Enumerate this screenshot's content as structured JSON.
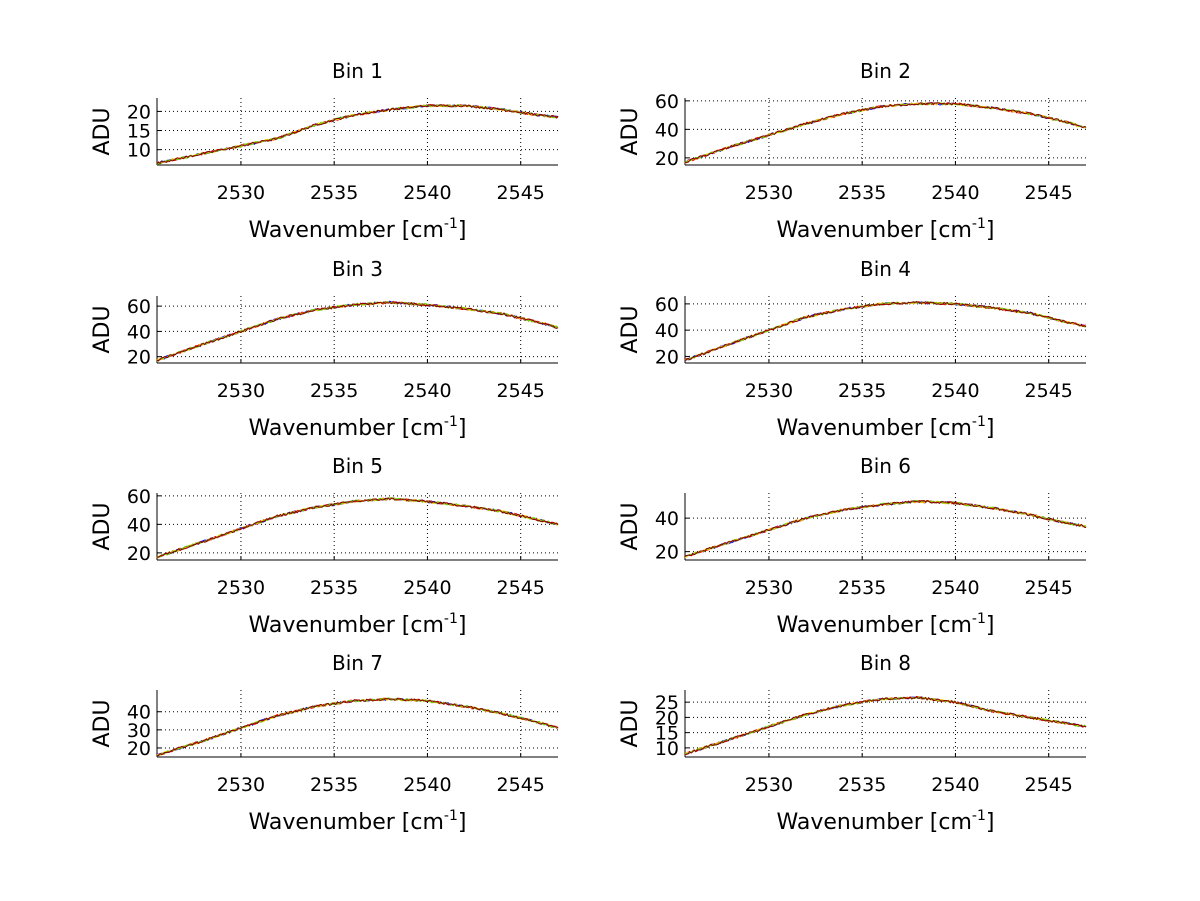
{
  "figure": {
    "background": "#ffffff",
    "series_colors": [
      "#0000ff",
      "#ff0000",
      "#ffcc00",
      "#66cc00",
      "#880000"
    ]
  },
  "chart_data": [
    {
      "type": "line",
      "title": "Bin 1",
      "xlabel": "Wavenumber [cm",
      "xlabel_sup": "-1",
      "xlabel_end": "]",
      "ylabel": "ADU",
      "xlim": [
        2525.5,
        2547
      ],
      "ylim": [
        6,
        23.5
      ],
      "xticks": [
        "2530",
        "2535",
        "2540",
        "2545"
      ],
      "yticks": [
        "10",
        "15",
        "20"
      ],
      "grid": true,
      "x": [
        2525.5,
        2528,
        2530,
        2532,
        2534,
        2536,
        2538,
        2540,
        2542,
        2544,
        2546,
        2547
      ],
      "y": [
        6.5,
        9,
        11,
        13,
        16.5,
        19,
        20.5,
        21.5,
        21.5,
        20.5,
        19,
        18.5
      ]
    },
    {
      "type": "line",
      "title": "Bin 2",
      "xlabel": "Wavenumber [cm",
      "xlabel_sup": "-1",
      "xlabel_end": "]",
      "ylabel": "ADU",
      "xlim": [
        2525.5,
        2547
      ],
      "ylim": [
        15,
        62
      ],
      "xticks": [
        "2530",
        "2535",
        "2540",
        "2545"
      ],
      "yticks": [
        "20",
        "40",
        "60"
      ],
      "grid": true,
      "x": [
        2525.5,
        2528,
        2530,
        2532,
        2534,
        2536,
        2538,
        2540,
        2542,
        2544,
        2546,
        2547
      ],
      "y": [
        17,
        28,
        36,
        44,
        51,
        56,
        58,
        58,
        55,
        51,
        45,
        41
      ]
    },
    {
      "type": "line",
      "title": "Bin 3",
      "xlabel": "Wavenumber [cm",
      "xlabel_sup": "-1",
      "xlabel_end": "]",
      "ylabel": "ADU",
      "xlim": [
        2525.5,
        2547
      ],
      "ylim": [
        15,
        68
      ],
      "xticks": [
        "2530",
        "2535",
        "2540",
        "2545"
      ],
      "yticks": [
        "20",
        "40",
        "60"
      ],
      "grid": true,
      "x": [
        2525.5,
        2528,
        2530,
        2532,
        2534,
        2536,
        2538,
        2540,
        2542,
        2544,
        2546,
        2547
      ],
      "y": [
        17,
        30,
        40,
        50,
        57,
        61,
        63,
        61,
        58,
        54,
        47,
        43
      ]
    },
    {
      "type": "line",
      "title": "Bin 4",
      "xlabel": "Wavenumber [cm",
      "xlabel_sup": "-1",
      "xlabel_end": "]",
      "ylabel": "ADU",
      "xlim": [
        2525.5,
        2547
      ],
      "ylim": [
        15,
        66
      ],
      "xticks": [
        "2530",
        "2535",
        "2540",
        "2545"
      ],
      "yticks": [
        "20",
        "40",
        "60"
      ],
      "grid": true,
      "x": [
        2525.5,
        2528,
        2530,
        2532,
        2534,
        2536,
        2538,
        2540,
        2542,
        2544,
        2546,
        2547
      ],
      "y": [
        17,
        30,
        40,
        50,
        56,
        60,
        61,
        60,
        57,
        53,
        46,
        43
      ]
    },
    {
      "type": "line",
      "title": "Bin 5",
      "xlabel": "Wavenumber [cm",
      "xlabel_sup": "-1",
      "xlabel_end": "]",
      "ylabel": "ADU",
      "xlim": [
        2525.5,
        2547
      ],
      "ylim": [
        15,
        62
      ],
      "xticks": [
        "2530",
        "2535",
        "2540",
        "2545"
      ],
      "yticks": [
        "20",
        "40",
        "60"
      ],
      "grid": true,
      "x": [
        2525.5,
        2528,
        2530,
        2532,
        2534,
        2536,
        2538,
        2540,
        2542,
        2544,
        2546,
        2547
      ],
      "y": [
        17,
        28,
        37,
        46,
        52,
        56,
        58,
        56,
        53,
        49,
        43,
        40
      ]
    },
    {
      "type": "line",
      "title": "Bin 6",
      "xlabel": "Wavenumber [cm",
      "xlabel_sup": "-1",
      "xlabel_end": "]",
      "ylabel": "ADU",
      "xlim": [
        2525.5,
        2547
      ],
      "ylim": [
        15,
        55
      ],
      "xticks": [
        "2530",
        "2535",
        "2540",
        "2545"
      ],
      "yticks": [
        "20",
        "40"
      ],
      "grid": true,
      "x": [
        2525.5,
        2528,
        2530,
        2532,
        2534,
        2536,
        2538,
        2540,
        2542,
        2544,
        2546,
        2547
      ],
      "y": [
        17,
        26,
        33,
        40,
        45,
        48,
        50,
        49,
        46,
        42,
        37,
        35
      ]
    },
    {
      "type": "line",
      "title": "Bin 7",
      "xlabel": "Wavenumber [cm",
      "xlabel_sup": "-1",
      "xlabel_end": "]",
      "ylabel": "ADU",
      "xlim": [
        2525.5,
        2547
      ],
      "ylim": [
        15,
        52
      ],
      "xticks": [
        "2530",
        "2535",
        "2540",
        "2545"
      ],
      "yticks": [
        "20",
        "30",
        "40"
      ],
      "grid": true,
      "x": [
        2525.5,
        2528,
        2530,
        2532,
        2534,
        2536,
        2538,
        2540,
        2542,
        2544,
        2546,
        2547
      ],
      "y": [
        16,
        24,
        31,
        38,
        43,
        46,
        47,
        46,
        43,
        39,
        34,
        31
      ]
    },
    {
      "type": "line",
      "title": "Bin 8",
      "xlabel": "Wavenumber [cm",
      "xlabel_sup": "-1",
      "xlabel_end": "]",
      "ylabel": "ADU",
      "xlim": [
        2525.5,
        2547
      ],
      "ylim": [
        7,
        29
      ],
      "xticks": [
        "2530",
        "2535",
        "2540",
        "2545"
      ],
      "yticks": [
        "10",
        "15",
        "20",
        "25"
      ],
      "grid": true,
      "x": [
        2525.5,
        2528,
        2530,
        2532,
        2534,
        2536,
        2538,
        2540,
        2542,
        2544,
        2546,
        2547
      ],
      "y": [
        8,
        13,
        17,
        21,
        24,
        26,
        26.5,
        25,
        22,
        20,
        18,
        17
      ]
    }
  ]
}
